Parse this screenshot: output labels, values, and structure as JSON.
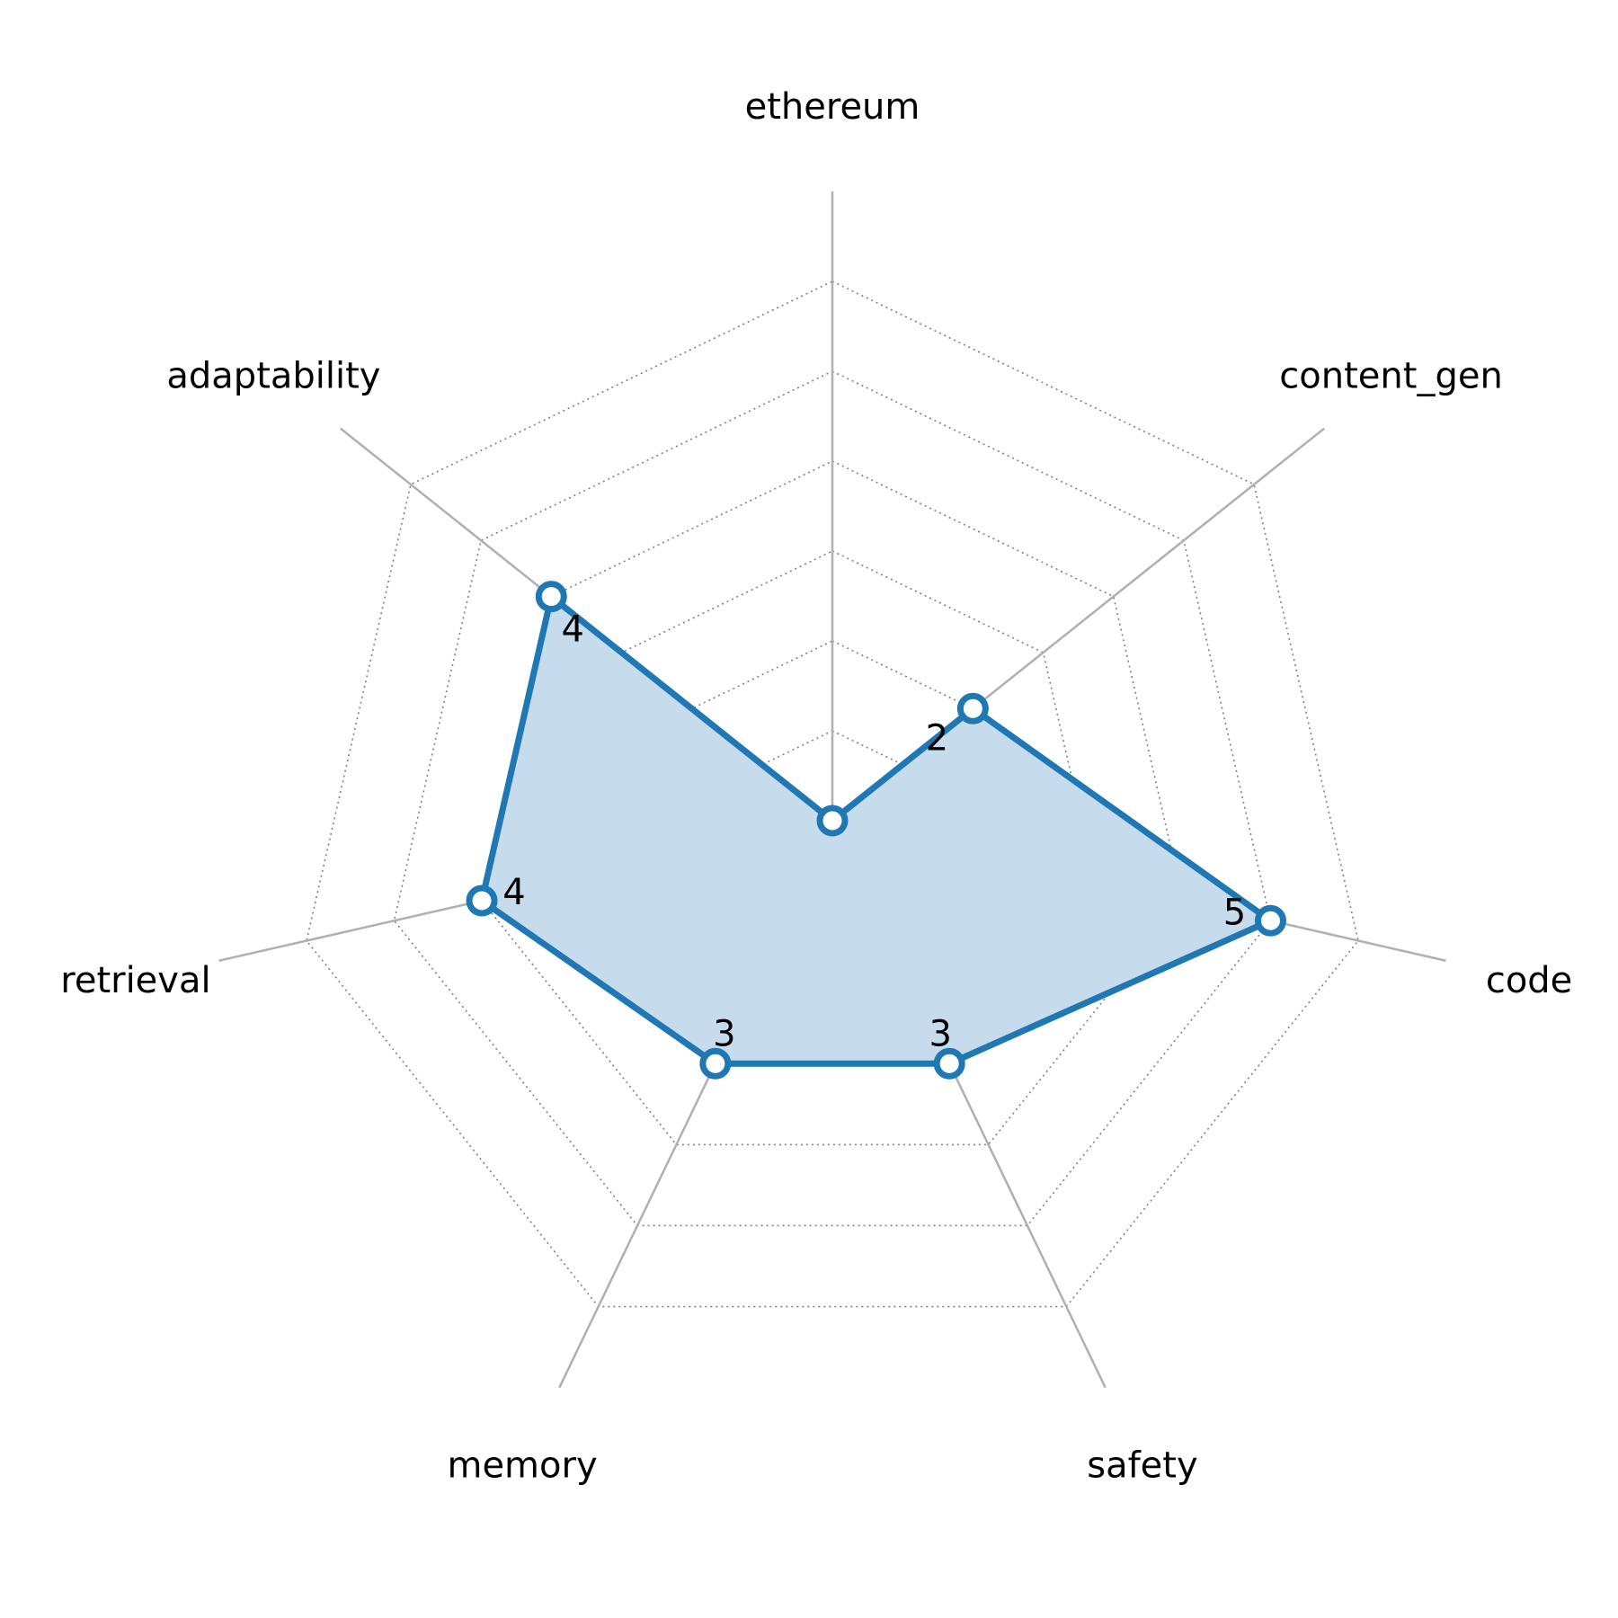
{
  "chart_data": {
    "type": "radar",
    "title": "",
    "axes": [
      "ethereum",
      "content_gen",
      "code",
      "safety",
      "memory",
      "retrieval",
      "adaptability"
    ],
    "series": [
      {
        "values": [
          0,
          2,
          5,
          3,
          3,
          4,
          4
        ],
        "color": "#1f77b4",
        "fill_color": "#c6dcec"
      }
    ],
    "range": [
      0,
      6
    ],
    "rings": [
      1,
      2,
      3,
      4,
      5,
      6
    ],
    "grid": true,
    "data_labels": true
  },
  "colors": {
    "series": "#1f77b4",
    "fill": "#c6dcec",
    "spoke": "#b0b0b0",
    "ring": "#808080",
    "marker_fill": "#ffffff"
  }
}
